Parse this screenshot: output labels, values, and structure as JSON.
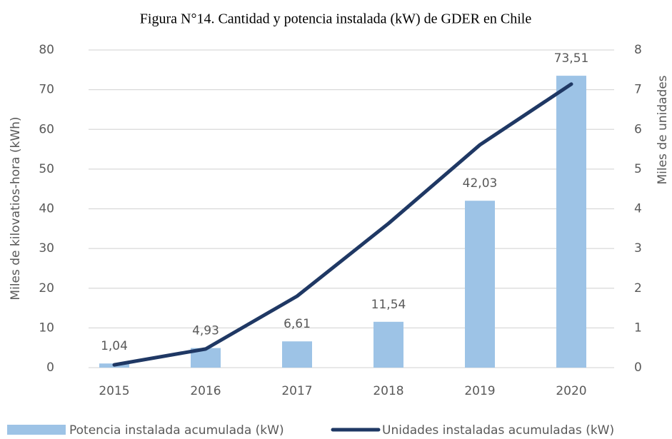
{
  "chart_data": {
    "type": "combo",
    "title": "Figura N°14. Cantidad y potencia instalada (kW) de GDER en Chile",
    "ylabel": "Miles de kilovatios-hora (kWh)",
    "y2label": "Miles de unidades",
    "categories": [
      "2015",
      "2016",
      "2017",
      "2018",
      "2019",
      "2020"
    ],
    "series": [
      {
        "name": "Potencia instalada acumulada (kW)",
        "type": "bar",
        "color": "#9dc3e6",
        "values": [
          1.04,
          4.93,
          6.61,
          11.54,
          42.03,
          73.51
        ],
        "value_labels": [
          "1,04",
          "4,93",
          "6,61",
          "11,54",
          "42,03",
          "73,51"
        ]
      },
      {
        "name": "Unidades instaladas acumuladas (kW)",
        "type": "line",
        "color": "#1f3864",
        "axis": "y2",
        "values": [
          0.07,
          0.47,
          1.8,
          3.63,
          5.61,
          7.14
        ]
      }
    ],
    "ylim": [
      0,
      80
    ],
    "yticks": [
      0,
      10,
      20,
      30,
      40,
      50,
      60,
      70,
      80
    ],
    "y2lim": [
      0,
      8
    ],
    "y2ticks": [
      0,
      1,
      2,
      3,
      4,
      5,
      6,
      7,
      8
    ],
    "grid": true,
    "legend": "bottom"
  }
}
